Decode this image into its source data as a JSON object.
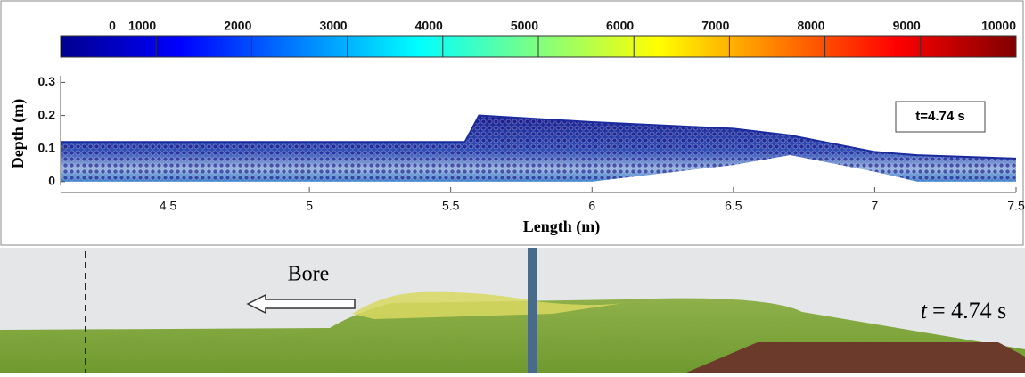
{
  "chart_data": {
    "type": "area",
    "xlabel": "Length (m)",
    "ylabel": "Depth (m)",
    "annotation": "t=4.74 s",
    "x": [
      4.12,
      4.8,
      5.55,
      5.6,
      6.0,
      6.5,
      6.7,
      7.0,
      7.15,
      7.5
    ],
    "series": [
      {
        "color": "#1a2a9c",
        "values": [
          0.12,
          0.12,
          0.12,
          0.2,
          0.18,
          0.16,
          0.14,
          0.09,
          0.08,
          0.07
        ]
      },
      {
        "color": "#ffffff",
        "values": [
          0,
          0,
          0,
          0,
          0,
          0.05,
          0.08,
          0.03,
          0,
          0
        ]
      }
    ],
    "xlim": [
      4.12,
      7.5
    ],
    "xticks": [
      4.5,
      5,
      5.5,
      6,
      6.5,
      7,
      7.5
    ],
    "ylim": [
      -0.03,
      0.32
    ],
    "yticks": [
      0,
      0.1,
      0.2,
      0.3
    ],
    "colorbar": {
      "lim": [
        0,
        10000
      ],
      "ticks": [
        0,
        1000,
        2000,
        3000,
        4000,
        5000,
        6000,
        7000,
        8000,
        9000,
        10000
      ],
      "colormap": "jet"
    }
  },
  "photo": {
    "label": "Bore",
    "time_var": "t",
    "time_value": "= 4.74 s"
  }
}
